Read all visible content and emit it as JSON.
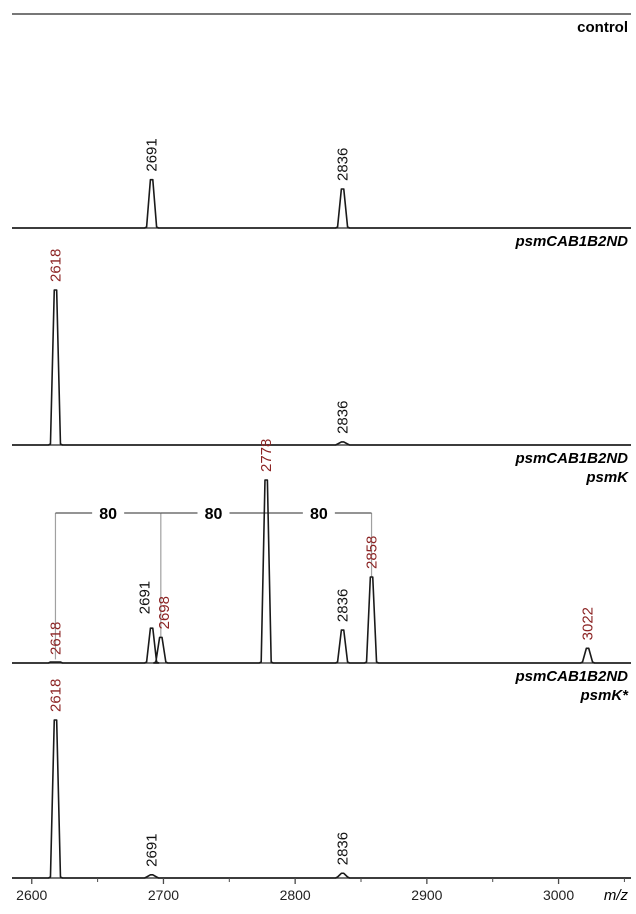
{
  "colors": {
    "trace": "#1a1a1a",
    "baseline": "#4a4a4a",
    "highlight_label": "#8b2323",
    "normal_label": "#111111",
    "bracket": "#a0a0a0"
  },
  "chart_data": {
    "type": "line",
    "xlabel": "m/z",
    "xlim": [
      2585,
      3055
    ],
    "x_ticks": [
      2600,
      2700,
      2800,
      2900,
      3000
    ],
    "x_tick_labels": [
      "2600",
      "2700",
      "2800",
      "2900",
      "3000"
    ],
    "y_axis_shown": false,
    "grid": false,
    "panels": [
      {
        "name": "control",
        "name_lines": [
          "control"
        ],
        "peaks": [
          {
            "mz": 2691,
            "intensity": 0.62,
            "label": "2691",
            "highlight": false
          },
          {
            "mz": 2836,
            "intensity": 0.5,
            "label": "2836",
            "highlight": false
          }
        ]
      },
      {
        "name": "psmCAB1B2ND",
        "name_lines": [
          "psmCAB1B2ND"
        ],
        "peaks": [
          {
            "mz": 2618,
            "intensity": 1.0,
            "label": "2618",
            "highlight": true
          },
          {
            "mz": 2836,
            "intensity": 0.02,
            "label": "2836",
            "highlight": false
          }
        ]
      },
      {
        "name": "psmCAB1B2ND psmK",
        "name_lines": [
          "psmCAB1B2ND",
          "psmK"
        ],
        "peaks": [
          {
            "mz": 2618,
            "intensity": 0.0,
            "label": "2618",
            "highlight": true
          },
          {
            "mz": 2691,
            "intensity": 0.19,
            "label": "2691",
            "highlight": false
          },
          {
            "mz": 2698,
            "intensity": 0.14,
            "label": "2698",
            "highlight": true
          },
          {
            "mz": 2778,
            "intensity": 1.0,
            "label": "2778",
            "highlight": true
          },
          {
            "mz": 2836,
            "intensity": 0.18,
            "label": "2836",
            "highlight": false
          },
          {
            "mz": 2858,
            "intensity": 0.47,
            "label": "2858",
            "highlight": true
          },
          {
            "mz": 3022,
            "intensity": 0.08,
            "label": "3022",
            "highlight": true
          }
        ],
        "spacings": [
          {
            "from": 2618,
            "to": 2698,
            "label": "80"
          },
          {
            "from": 2698,
            "to": 2778,
            "label": "80"
          },
          {
            "from": 2778,
            "to": 2858,
            "label": "80"
          }
        ]
      },
      {
        "name": "psmCAB1B2ND psmK*",
        "name_lines": [
          "psmCAB1B2ND",
          "psmK*"
        ],
        "peaks": [
          {
            "mz": 2618,
            "intensity": 1.0,
            "label": "2618",
            "highlight": true
          },
          {
            "mz": 2691,
            "intensity": 0.02,
            "label": "2691",
            "highlight": false
          },
          {
            "mz": 2836,
            "intensity": 0.03,
            "label": "2836",
            "highlight": false
          }
        ]
      }
    ]
  }
}
